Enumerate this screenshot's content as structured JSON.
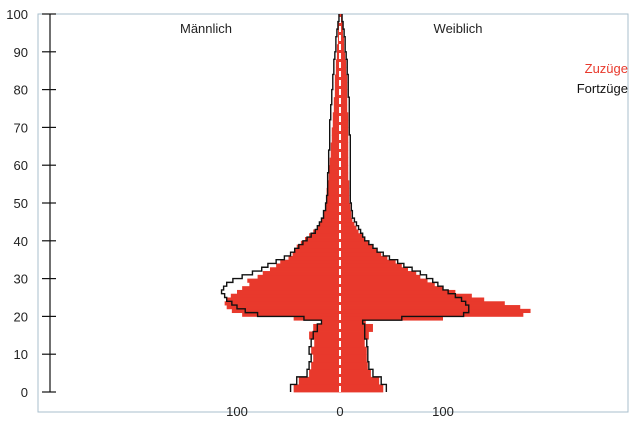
{
  "chart_data": {
    "type": "bar",
    "orientation": "horizontal",
    "subtype": "population-pyramid",
    "y_axis": {
      "range": [
        0,
        100
      ],
      "ticks": [
        0,
        10,
        20,
        30,
        40,
        50,
        60,
        70,
        80,
        90,
        100
      ]
    },
    "x_axis": {
      "range": [
        -195,
        195
      ],
      "ticks": [
        -100,
        0,
        100
      ],
      "tick_labels": [
        "100",
        "0",
        "100"
      ]
    },
    "side_labels": {
      "left": "Männlich",
      "right": "Weiblich"
    },
    "legend": {
      "placement": "top-right",
      "entries": [
        {
          "label": "Zuzüge",
          "color": "#e8392c"
        },
        {
          "label": "Fortzüge",
          "color": "#111111"
        }
      ]
    },
    "colors": {
      "bars": "#e8392c",
      "outline": "#111111",
      "frame": "#a9bfcc",
      "center_line": "#ffffff"
    },
    "series": [
      {
        "name": "Zuzüge",
        "style": "filled",
        "age": [
          0,
          2,
          4,
          6,
          8,
          10,
          12,
          14,
          16,
          18,
          19,
          20,
          21,
          22,
          23,
          24,
          25,
          26,
          27,
          28,
          29,
          30,
          31,
          32,
          33,
          34,
          35,
          36,
          37,
          38,
          39,
          40,
          41,
          42,
          43,
          44,
          45,
          46,
          48,
          50,
          52,
          54,
          56,
          58,
          60,
          62,
          64,
          66,
          68,
          70,
          72,
          74,
          76,
          78,
          80,
          82,
          84,
          86,
          88,
          90,
          92,
          94,
          96,
          98,
          100
        ],
        "male": [
          -45,
          -40,
          -30,
          -28,
          -26,
          -28,
          -25,
          -30,
          -26,
          -18,
          -45,
          -95,
          -105,
          -110,
          -112,
          -110,
          -106,
          -100,
          -95,
          -88,
          -90,
          -80,
          -75,
          -68,
          -62,
          -58,
          -50,
          -46,
          -44,
          -42,
          -38,
          -34,
          -30,
          -26,
          -22,
          -20,
          -18,
          -16,
          -14,
          -13,
          -13,
          -12,
          -11,
          -11,
          -10,
          -9,
          -9,
          -8,
          -8,
          -7,
          -7,
          -6,
          -6,
          -5,
          -5,
          -5,
          -4,
          -4,
          -3,
          -3,
          -2,
          -2,
          -2,
          -1,
          0
        ],
        "female": [
          42,
          38,
          30,
          27,
          26,
          26,
          24,
          28,
          32,
          25,
          100,
          178,
          185,
          175,
          160,
          140,
          128,
          112,
          100,
          92,
          85,
          78,
          74,
          66,
          60,
          54,
          46,
          40,
          36,
          32,
          28,
          24,
          22,
          18,
          16,
          14,
          12,
          11,
          10,
          9,
          9,
          9,
          8,
          8,
          8,
          8,
          8,
          8,
          8,
          8,
          8,
          7,
          7,
          7,
          7,
          7,
          6,
          6,
          5,
          4,
          4,
          3,
          3,
          2,
          0
        ]
      },
      {
        "name": "Fortzüge",
        "style": "outline",
        "age": [
          0,
          2,
          4,
          6,
          8,
          10,
          12,
          14,
          16,
          18,
          19,
          20,
          21,
          22,
          23,
          24,
          25,
          26,
          27,
          28,
          29,
          30,
          31,
          32,
          33,
          34,
          35,
          36,
          37,
          38,
          39,
          40,
          41,
          42,
          43,
          44,
          45,
          46,
          48,
          50,
          52,
          54,
          56,
          58,
          60,
          62,
          64,
          66,
          68,
          70,
          72,
          74,
          76,
          78,
          80,
          82,
          84,
          86,
          88,
          90,
          92,
          94,
          96,
          98,
          100
        ],
        "male": [
          -48,
          -42,
          -32,
          -30,
          -28,
          -30,
          -28,
          -26,
          -22,
          -18,
          -35,
          -80,
          -92,
          -100,
          -105,
          -110,
          -112,
          -115,
          -113,
          -110,
          -104,
          -95,
          -85,
          -76,
          -70,
          -62,
          -54,
          -48,
          -44,
          -40,
          -36,
          -32,
          -28,
          -24,
          -22,
          -20,
          -18,
          -16,
          -14,
          -13,
          -12,
          -12,
          -12,
          -11,
          -11,
          -11,
          -10,
          -10,
          -10,
          -10,
          -9,
          -9,
          -8,
          -8,
          -7,
          -7,
          -6,
          -6,
          -5,
          -4,
          -4,
          -3,
          -2,
          -1,
          0
        ],
        "female": [
          45,
          40,
          32,
          28,
          27,
          27,
          26,
          24,
          24,
          22,
          60,
          120,
          125,
          125,
          122,
          118,
          112,
          105,
          100,
          95,
          90,
          84,
          78,
          70,
          62,
          56,
          48,
          42,
          36,
          32,
          28,
          24,
          22,
          20,
          18,
          16,
          14,
          12,
          11,
          10,
          10,
          10,
          10,
          10,
          10,
          10,
          10,
          10,
          9,
          9,
          9,
          9,
          9,
          8,
          8,
          8,
          7,
          7,
          6,
          5,
          5,
          4,
          3,
          2,
          0
        ]
      }
    ]
  }
}
